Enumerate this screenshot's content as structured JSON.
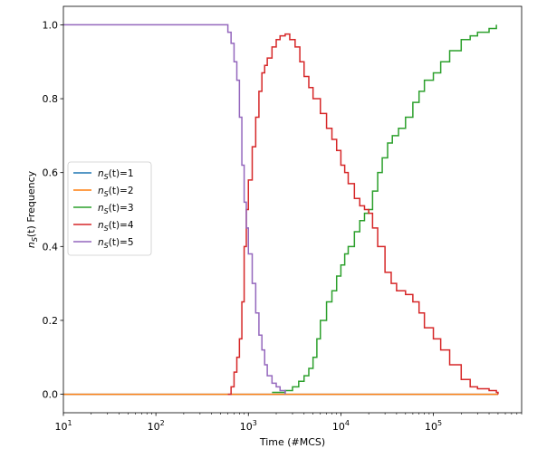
{
  "chart_data": {
    "type": "line",
    "xlabel": "Time (#MCS)",
    "ylabel": "n_S(t) Frequency",
    "xscale": "log",
    "xlim": [
      10,
      900000
    ],
    "ylim": [
      -0.05,
      1.05
    ],
    "x_ticks": [
      {
        "value": 10,
        "base": "10",
        "exp": "1"
      },
      {
        "value": 100,
        "base": "10",
        "exp": "2"
      },
      {
        "value": 1000,
        "base": "10",
        "exp": "3"
      },
      {
        "value": 10000,
        "base": "10",
        "exp": "4"
      },
      {
        "value": 100000,
        "base": "10",
        "exp": "5"
      }
    ],
    "y_ticks": [
      "0.0",
      "0.2",
      "0.4",
      "0.6",
      "0.8",
      "1.0"
    ],
    "legend": {
      "placement": "center-left"
    },
    "grid": false,
    "series": [
      {
        "name": "n_S(t)=1",
        "label_prefix": "n",
        "label_sub": "S",
        "label_suffix": "(t)=1",
        "color": "#1f77b4",
        "x": [
          10,
          500000
        ],
        "y": [
          0,
          0
        ]
      },
      {
        "name": "n_S(t)=2",
        "label_prefix": "n",
        "label_sub": "S",
        "label_suffix": "(t)=2",
        "color": "#ff7f0e",
        "x": [
          10,
          500000
        ],
        "y": [
          0,
          0
        ]
      },
      {
        "name": "n_S(t)=3",
        "label_prefix": "n",
        "label_sub": "S",
        "label_suffix": "(t)=3",
        "color": "#2ca02c",
        "x": [
          1800,
          2500,
          3000,
          3500,
          4000,
          4500,
          5000,
          5500,
          6000,
          7000,
          8000,
          9000,
          10000,
          11000,
          12000,
          14000,
          16000,
          18000,
          20000,
          22000,
          25000,
          28000,
          32000,
          36000,
          42000,
          50000,
          60000,
          70000,
          80000,
          100000,
          120000,
          150000,
          200000,
          250000,
          300000,
          400000,
          480000
        ],
        "y": [
          0.005,
          0.01,
          0.02,
          0.035,
          0.05,
          0.07,
          0.1,
          0.15,
          0.2,
          0.25,
          0.28,
          0.32,
          0.35,
          0.38,
          0.4,
          0.44,
          0.47,
          0.49,
          0.5,
          0.55,
          0.6,
          0.64,
          0.68,
          0.7,
          0.72,
          0.75,
          0.79,
          0.82,
          0.85,
          0.87,
          0.9,
          0.93,
          0.96,
          0.97,
          0.98,
          0.99,
          1.0
        ]
      },
      {
        "name": "n_S(t)=4",
        "label_prefix": "n",
        "label_sub": "S",
        "label_suffix": "(t)=4",
        "color": "#d62728",
        "x": [
          600,
          650,
          700,
          750,
          800,
          850,
          900,
          950,
          1000,
          1100,
          1200,
          1300,
          1400,
          1500,
          1600,
          1800,
          2000,
          2200,
          2500,
          2800,
          3200,
          3600,
          4000,
          4500,
          5000,
          6000,
          7000,
          8000,
          9000,
          10000,
          11000,
          12000,
          14000,
          16000,
          18000,
          20000,
          22000,
          25000,
          30000,
          35000,
          40000,
          50000,
          60000,
          70000,
          80000,
          100000,
          120000,
          150000,
          200000,
          250000,
          300000,
          400000,
          480000,
          500000
        ],
        "y": [
          0.0,
          0.02,
          0.06,
          0.1,
          0.15,
          0.25,
          0.4,
          0.5,
          0.58,
          0.67,
          0.75,
          0.82,
          0.87,
          0.89,
          0.91,
          0.94,
          0.96,
          0.97,
          0.975,
          0.96,
          0.94,
          0.9,
          0.86,
          0.83,
          0.8,
          0.76,
          0.72,
          0.69,
          0.66,
          0.62,
          0.6,
          0.57,
          0.53,
          0.51,
          0.5,
          0.49,
          0.45,
          0.4,
          0.33,
          0.3,
          0.28,
          0.27,
          0.25,
          0.22,
          0.18,
          0.15,
          0.12,
          0.08,
          0.04,
          0.02,
          0.015,
          0.01,
          0.005,
          0.0
        ]
      },
      {
        "name": "n_S(t)=5",
        "label_prefix": "n",
        "label_sub": "S",
        "label_suffix": "(t)=5",
        "color": "#9467bd",
        "x": [
          10,
          100,
          550,
          600,
          650,
          700,
          750,
          800,
          850,
          900,
          950,
          1000,
          1100,
          1200,
          1300,
          1400,
          1500,
          1600,
          1800,
          2000,
          2200,
          2500
        ],
        "y": [
          1.0,
          1.0,
          1.0,
          0.98,
          0.95,
          0.9,
          0.85,
          0.75,
          0.62,
          0.52,
          0.45,
          0.38,
          0.3,
          0.22,
          0.16,
          0.12,
          0.08,
          0.05,
          0.03,
          0.02,
          0.01,
          0.0
        ]
      }
    ]
  }
}
